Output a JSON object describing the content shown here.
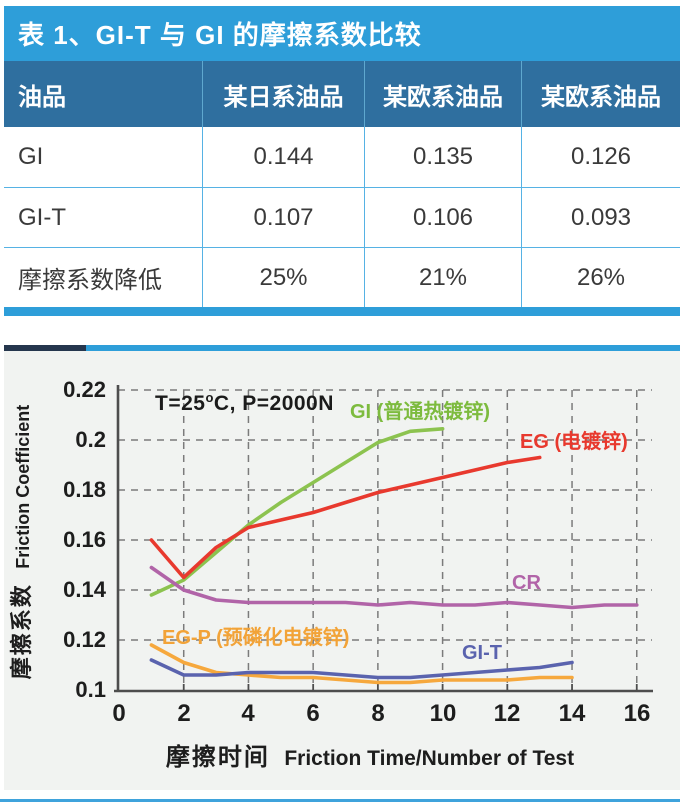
{
  "table": {
    "title": "表 1、GI-T 与 GI 的摩擦系数比较",
    "columns": [
      "油品",
      "某日系油品",
      "某欧系油品",
      "某欧系油品"
    ],
    "rows": [
      {
        "label": "GI",
        "values": [
          "0.144",
          "0.135",
          "0.126"
        ]
      },
      {
        "label": "GI-T",
        "values": [
          "0.107",
          "0.106",
          "0.093"
        ]
      },
      {
        "label": "摩擦系数降低",
        "values": [
          "25%",
          "21%",
          "26%"
        ]
      }
    ]
  },
  "chart": {
    "annotation": {
      "pre": "T=25",
      "sup": "o",
      "post": "C, P=2000N"
    },
    "y_axis": {
      "zh": "摩擦系数",
      "en": "Friction Coefficient"
    },
    "x_axis": {
      "zh": "摩擦时间",
      "en": "Friction Time/Number of Test"
    },
    "y_ticks": [
      "0.22",
      "0.2",
      "0.18",
      "0.16",
      "0.14",
      "0.12",
      "0.1"
    ],
    "x_ticks": [
      "0",
      "2",
      "4",
      "6",
      "8",
      "10",
      "12",
      "14",
      "16"
    ]
  },
  "chart_data": {
    "type": "line",
    "xlabel": "摩擦时间 Friction Time/Number of Test",
    "ylabel": "摩擦系数 Friction Coefficient",
    "xlim": [
      0,
      16.5
    ],
    "ylim": [
      0.1,
      0.22
    ],
    "x_tick_step": 2,
    "y_tick_step": 0.02,
    "grid": "dashed",
    "legend_position": "inline-labels",
    "annotation": "T=25°C, P=2000N",
    "colors": {
      "table_header_bar": "#2e9ed9",
      "table_column_header": "#2f6f9f",
      "grid": "#7b7b7b",
      "axis": "#4d4d4d"
    },
    "series": [
      {
        "name": "GI (普通热镀锌)",
        "color": "#8cc34f",
        "x": [
          1,
          2,
          3,
          4,
          5,
          6,
          7,
          8,
          9,
          10
        ],
        "y": [
          0.138,
          0.144,
          0.155,
          0.166,
          0.175,
          0.183,
          0.191,
          0.199,
          0.2035,
          0.2045
        ]
      },
      {
        "name": "EG (电镀锌)",
        "color": "#e8392e",
        "x": [
          1,
          2,
          3,
          4,
          5,
          6,
          7,
          8,
          9,
          10,
          11,
          12,
          13
        ],
        "y": [
          0.16,
          0.145,
          0.157,
          0.165,
          0.168,
          0.171,
          0.175,
          0.179,
          0.182,
          0.185,
          0.188,
          0.191,
          0.193
        ]
      },
      {
        "name": "CR",
        "color": "#b164a8",
        "x": [
          1,
          2,
          3,
          4,
          5,
          6,
          7,
          8,
          9,
          10,
          11,
          12,
          13,
          14,
          15,
          16
        ],
        "y": [
          0.149,
          0.14,
          0.136,
          0.135,
          0.135,
          0.135,
          0.135,
          0.134,
          0.135,
          0.134,
          0.134,
          0.135,
          0.134,
          0.133,
          0.134,
          0.134
        ]
      },
      {
        "name": "EG-P (预磷化电镀锌)",
        "color": "#f6a83d",
        "x": [
          1,
          2,
          3,
          4,
          5,
          6,
          7,
          8,
          9,
          10,
          11,
          12,
          13,
          14
        ],
        "y": [
          0.118,
          0.111,
          0.107,
          0.106,
          0.105,
          0.105,
          0.104,
          0.103,
          0.103,
          0.104,
          0.104,
          0.104,
          0.105,
          0.105
        ]
      },
      {
        "name": "GI-T",
        "color": "#5a63ae",
        "x": [
          1,
          2,
          3,
          4,
          5,
          6,
          7,
          8,
          9,
          10,
          11,
          12,
          13,
          14
        ],
        "y": [
          0.112,
          0.106,
          0.106,
          0.107,
          0.107,
          0.107,
          0.106,
          0.105,
          0.105,
          0.106,
          0.107,
          0.108,
          0.109,
          0.111
        ]
      }
    ]
  }
}
